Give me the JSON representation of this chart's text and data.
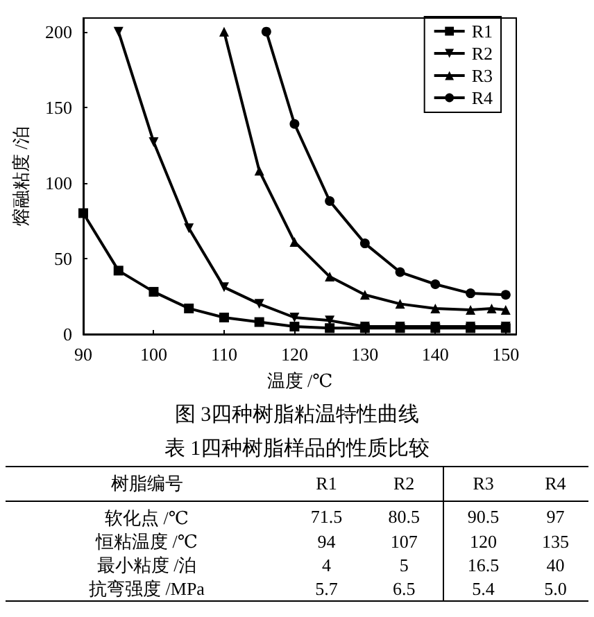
{
  "chart_data": [
    {
      "type": "line",
      "title": "图 3四种树脂粘温特性曲线",
      "xlabel": "温度 /℃",
      "ylabel": "熔融粘度 /泊",
      "xlim": [
        90,
        151.5
      ],
      "ylim": [
        0,
        209
      ],
      "xticks": [
        90,
        100,
        110,
        120,
        130,
        140,
        150
      ],
      "yticks": [
        0,
        50,
        100,
        150,
        200
      ],
      "grid": false,
      "legend": "top right",
      "line_style": "solid",
      "series": [
        {
          "name": "R1",
          "color": "#000000",
          "marker": "square",
          "x": [
            90,
            95,
            100,
            105,
            110,
            115,
            120,
            125,
            130,
            135,
            140,
            145,
            150
          ],
          "values": [
            80,
            42,
            28,
            17,
            11,
            8,
            5,
            4,
            4,
            4,
            4,
            4,
            4
          ]
        },
        {
          "name": "R2",
          "color": "#000000",
          "marker": "triangle-down",
          "x": [
            95,
            100,
            105,
            110,
            115,
            120,
            125,
            130,
            135,
            140,
            145,
            150
          ],
          "values": [
            200,
            127,
            70,
            31,
            20,
            11,
            9,
            5,
            5,
            5,
            5,
            5
          ]
        },
        {
          "name": "R3",
          "color": "#000000",
          "marker": "triangle",
          "x": [
            110,
            115,
            120,
            125,
            130,
            135,
            140,
            145,
            148,
            150
          ],
          "values": [
            200,
            108,
            61,
            38,
            26,
            20,
            17,
            16,
            17,
            16
          ]
        },
        {
          "name": "R4",
          "color": "#000000",
          "marker": "circle",
          "x": [
            116,
            120,
            125,
            130,
            135,
            140,
            145,
            150
          ],
          "values": [
            200,
            139,
            88,
            60,
            41,
            33,
            27,
            26
          ]
        }
      ]
    },
    {
      "type": "other",
      "title": "表 1四种树脂样品的性质比较",
      "annotations": [
        "树脂编号"
      ],
      "categories": [
        "R1",
        "R2",
        "R3",
        "R4"
      ],
      "y_categories": [
        "软化点 /℃",
        "恒粘温度 /℃",
        "最小粘度 /泊",
        "抗弯强度 /MPa"
      ],
      "cell_labels": [
        [
          "71.5",
          "80.5",
          "90.5",
          "97"
        ],
        [
          "94",
          "107",
          "120",
          "135"
        ],
        [
          "4",
          "5",
          "16.5",
          "40"
        ],
        [
          "5.7",
          "6.5",
          "5.4",
          "5.0"
        ]
      ]
    }
  ]
}
